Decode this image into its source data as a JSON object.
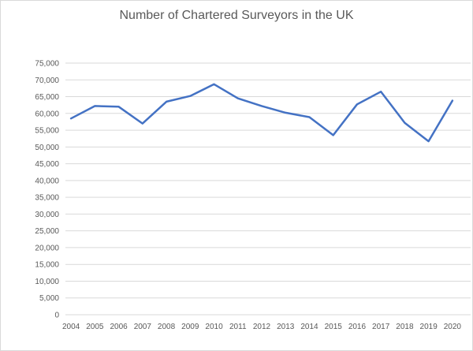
{
  "chart_data": {
    "type": "line",
    "title": "Number of Chartered Surveyors in the UK",
    "xlabel": "",
    "ylabel": "",
    "categories": [
      "2004",
      "2005",
      "2006",
      "2007",
      "2008",
      "2009",
      "2010",
      "2011",
      "2012",
      "2013",
      "2014",
      "2015",
      "2016",
      "2017",
      "2018",
      "2019",
      "2020"
    ],
    "series": [
      {
        "values": [
          58500,
          62200,
          62000,
          57000,
          63500,
          65200,
          68700,
          64500,
          62200,
          60200,
          58900,
          53500,
          62700,
          66500,
          57200,
          51700,
          63800
        ],
        "color": "#4472c4"
      }
    ],
    "ylim": [
      0,
      75000
    ],
    "yticks": [
      "0",
      "5,000",
      "10,000",
      "15,000",
      "20,000",
      "25,000",
      "30,000",
      "35,000",
      "40,000",
      "45,000",
      "50,000",
      "55,000",
      "60,000",
      "65,000",
      "70,000",
      "75,000"
    ],
    "grid": true,
    "legend": "none"
  }
}
